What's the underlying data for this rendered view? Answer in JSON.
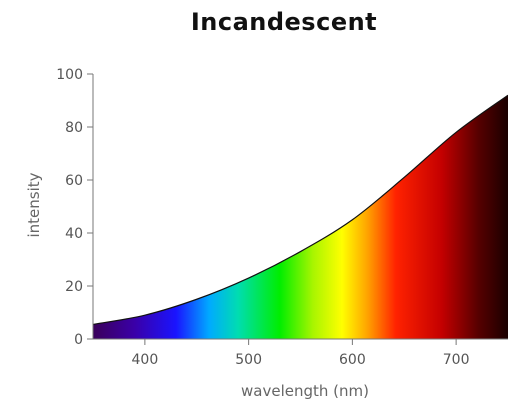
{
  "chart_data": {
    "type": "area",
    "title": "Incandescent",
    "xlabel": "wavelength (nm)",
    "ylabel": "intensity",
    "xlim": [
      350,
      750
    ],
    "ylim": [
      0,
      100
    ],
    "xticks": [
      400,
      500,
      600,
      700
    ],
    "yticks": [
      0,
      20,
      40,
      60,
      80,
      100
    ],
    "grid": false,
    "fill": "visible spectrum gradient",
    "series": [
      {
        "x": [
          350,
          400,
          450,
          500,
          550,
          600,
          650,
          700,
          750
        ],
        "y": [
          5.5,
          9,
          15,
          23,
          33,
          45,
          61,
          78,
          92
        ]
      }
    ]
  }
}
